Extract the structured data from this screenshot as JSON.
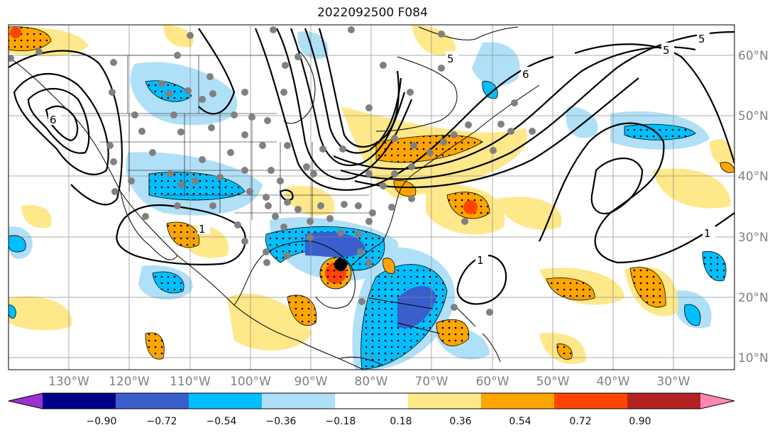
{
  "title": "2022092500 F084",
  "lon_labels": [
    "130°W",
    "120°W",
    "110°W",
    "100°W",
    "90°W",
    "80°W",
    "70°W",
    "60°W",
    "50°W",
    "40°W",
    "30°W"
  ],
  "lat_labels": [
    "60°N",
    "50°N",
    "40°N",
    "30°N",
    "20°N",
    "10°N"
  ],
  "contour_labels": [
    "5",
    "5",
    "6",
    "5",
    "1",
    "1",
    "6",
    "1"
  ],
  "colorbar": {
    "ticks": [
      "−0.90",
      "−0.72",
      "−0.54",
      "−0.36",
      "−0.18",
      "0.18",
      "0.36",
      "0.54",
      "0.72",
      "0.90"
    ],
    "colors": [
      "#9a32cd",
      "#00008b",
      "#3a5fcd",
      "#00bfff",
      "#b0e0f8",
      "#ffffff",
      "#ffe88a",
      "#ffa500",
      "#ff4500",
      "#b22222",
      "#ff88b0"
    ]
  },
  "map_colors": {
    "light_blue": "#b0e0f8",
    "blue": "#00bfff",
    "royal_blue": "#3a5fcd",
    "yellow": "#ffe88a",
    "orange": "#ffa500",
    "red": "#ff4500",
    "grey_dot": "#808080"
  }
}
